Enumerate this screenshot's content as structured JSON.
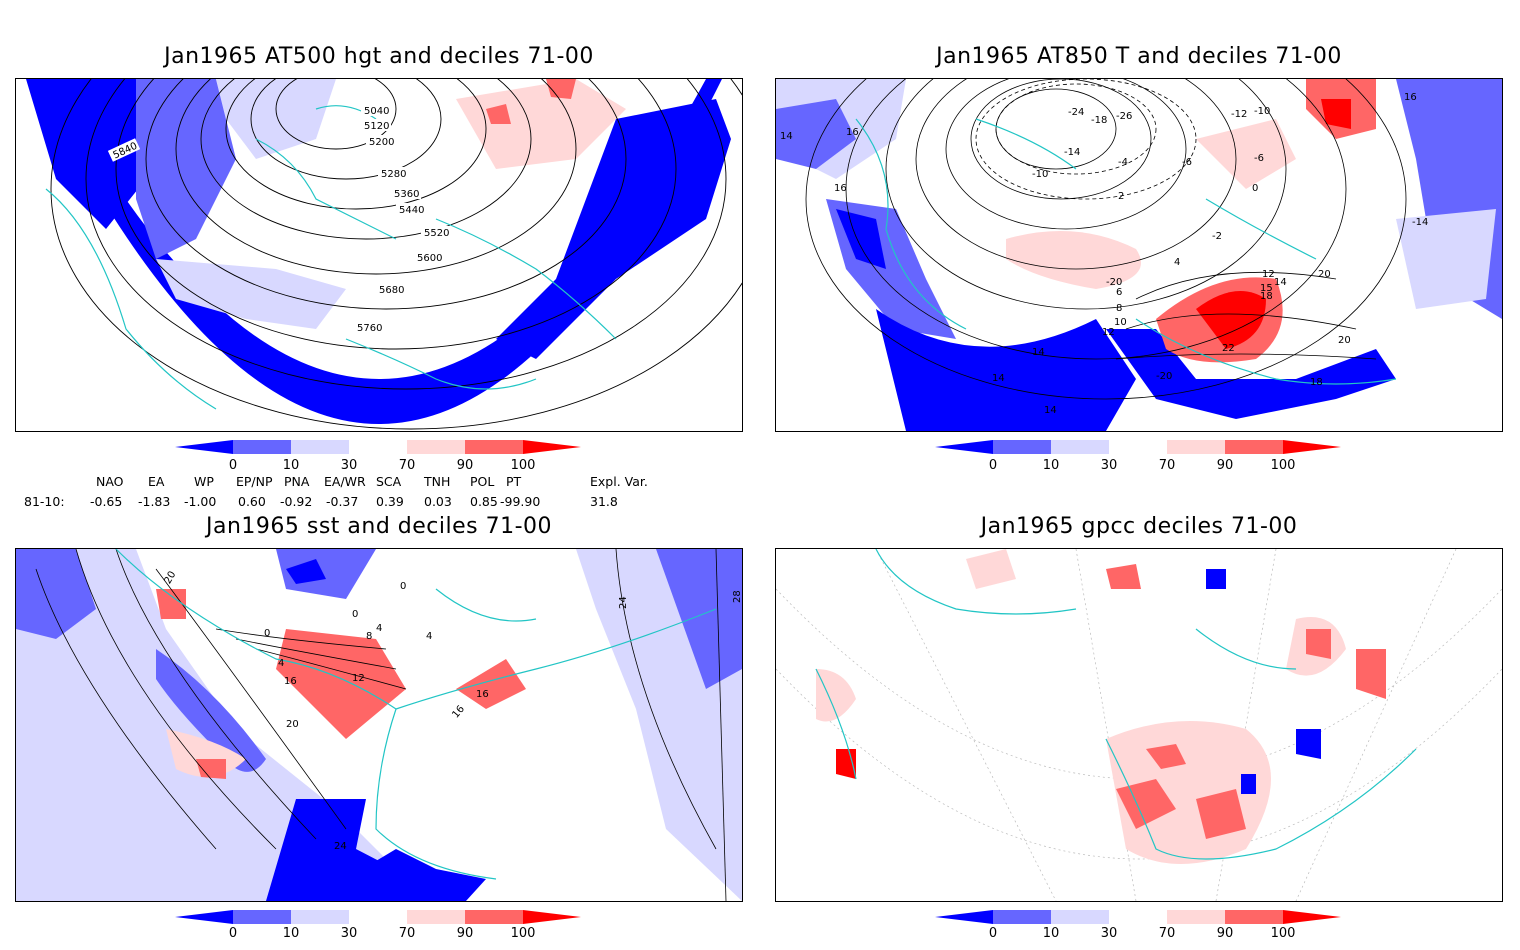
{
  "panels": {
    "p1": {
      "title": "Jan1965 AT500 hgt and deciles 71-00",
      "contour_labels": [
        "5040",
        "5120",
        "5200",
        "5280",
        "5360",
        "5440",
        "5520",
        "5600",
        "5680",
        "5760",
        "5840"
      ]
    },
    "p2": {
      "title": "Jan1965 AT850 T and deciles 71-00",
      "contour_labels": [
        "16",
        "16",
        "16",
        "14",
        "-24",
        "-18",
        "-26",
        "-12",
        "-10",
        "-6",
        "-4",
        "-14",
        "-10",
        "-6",
        "2",
        "0",
        "-2",
        "-14",
        "4",
        "12",
        "14",
        "15",
        "18",
        "20",
        "20",
        "6",
        "8",
        "10",
        "12",
        "14",
        "14",
        "14",
        "22",
        "-20",
        "18",
        "-20"
      ]
    },
    "p3": {
      "title": "Jan1965 sst and deciles 71-00",
      "contour_labels": [
        "20",
        "0",
        "4",
        "8",
        "12",
        "16",
        "16",
        "16",
        "20",
        "24",
        "24",
        "28",
        "0",
        "4",
        "4",
        "0"
      ]
    },
    "p4": {
      "title": "Jan1965 gpcc deciles 71-00"
    }
  },
  "colorbar": {
    "colors": [
      "#0000ff",
      "#6666ff",
      "#d8d8ff",
      "#ffffff",
      "#ffd8d8",
      "#ff6666",
      "#ff0000"
    ],
    "labels": [
      "0",
      "10",
      "30",
      "70",
      "90",
      "100"
    ]
  },
  "indices": {
    "headers": [
      "NAO",
      "EA",
      "WP",
      "EP/NP",
      "PNA",
      "EA/WR",
      "SCA",
      "TNH",
      "POL",
      "PT",
      "Expl. Var."
    ],
    "row_label": "81-10:",
    "values": [
      "-0.65",
      "-1.83",
      "-1.00",
      "0.60",
      "-0.92",
      "-0.37",
      "0.39",
      "0.03",
      "0.85",
      "-99.90",
      "31.8"
    ]
  }
}
